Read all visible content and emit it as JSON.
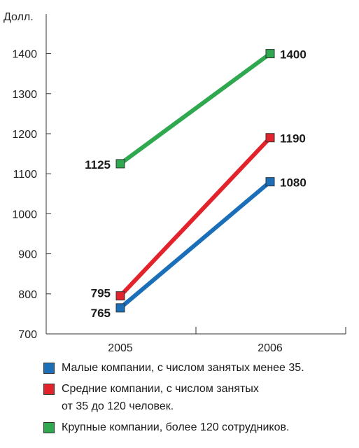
{
  "chart_data": {
    "type": "line",
    "ylabel": "Долл.",
    "categories": [
      "2005",
      "2006"
    ],
    "ylim": [
      700,
      1500
    ],
    "yticks": [
      700,
      800,
      900,
      1000,
      1100,
      1200,
      1300,
      1400
    ],
    "series": [
      {
        "name": "Малые компании, с числом занятых менее 35.",
        "color": "#1a6fb8",
        "values": [
          765,
          1080
        ],
        "labels": [
          "765",
          "1080"
        ]
      },
      {
        "name": "Средние компании, с числом занятых от 35 до 120 человек.",
        "color": "#e3232b",
        "values": [
          795,
          1190
        ],
        "labels": [
          "795",
          "1190"
        ]
      },
      {
        "name": "Крупные компании, более 120 сотрудников.",
        "color": "#2fa84f",
        "values": [
          1125,
          1400
        ],
        "labels": [
          "1125",
          "1400"
        ]
      }
    ]
  },
  "legend": [
    {
      "line1": "Малые компании, с числом занятых менее 35.",
      "line2": ""
    },
    {
      "line1": "Средние компании, с числом занятых",
      "line2": "от 35 до 120 человек."
    },
    {
      "line1": "Крупные компании, более 120 сотрудников.",
      "line2": ""
    }
  ]
}
